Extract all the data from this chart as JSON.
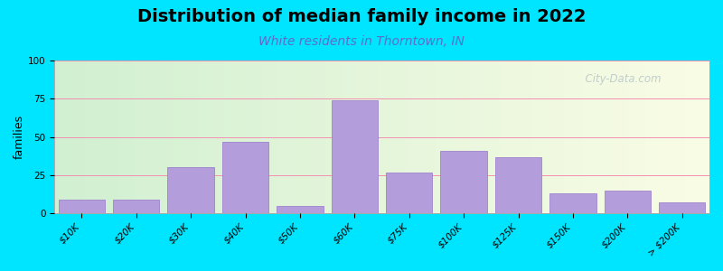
{
  "title": "Distribution of median family income in 2022",
  "subtitle": "White residents in Thorntown, IN",
  "ylabel": "families",
  "categories": [
    "$10K",
    "$20K",
    "$30K",
    "$40K",
    "$50K",
    "$60K",
    "$75K",
    "$100K",
    "$125K",
    "$150K",
    "$200K",
    "> $200K"
  ],
  "values": [
    9,
    9,
    30,
    47,
    5,
    74,
    27,
    41,
    37,
    13,
    15,
    7
  ],
  "bar_color": "#b39ddb",
  "bar_edge_color": "#9575cd",
  "ylim": [
    0,
    100
  ],
  "yticks": [
    0,
    25,
    50,
    75,
    100
  ],
  "background_outer": "#00e5ff",
  "watermark": "  City-Data.com",
  "title_fontsize": 14,
  "subtitle_fontsize": 10,
  "subtitle_color": "#5b6dc8",
  "ylabel_fontsize": 9,
  "tick_fontsize": 7.5
}
